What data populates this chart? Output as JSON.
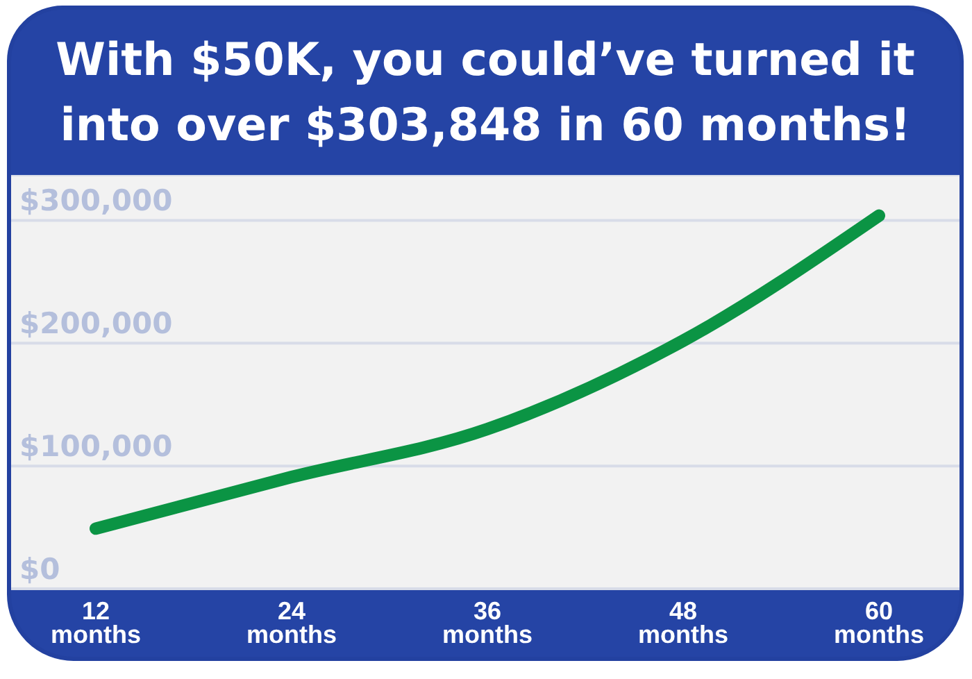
{
  "chart_data": {
    "type": "line",
    "title": "With $50K, you could’ve turned it into over $303,848 in 60 months!",
    "categories": [
      "12 months",
      "24 months",
      "36 months",
      "48 months",
      "60 months"
    ],
    "values": [
      49000,
      91000,
      130000,
      202000,
      303848
    ],
    "color": "#0b9444",
    "ylim": [
      0,
      337000
    ],
    "yticks": [
      {
        "value": 0,
        "label": "$0"
      },
      {
        "value": 100000,
        "label": "$100,000"
      },
      {
        "value": 200000,
        "label": "$200,000"
      },
      {
        "value": 300000,
        "label": "$300,000"
      }
    ],
    "grid": "y"
  }
}
